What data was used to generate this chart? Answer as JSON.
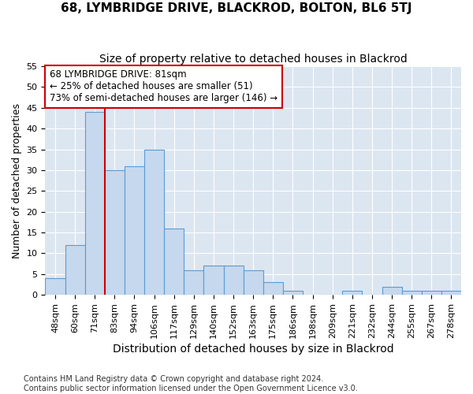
{
  "title": "68, LYMBRIDGE DRIVE, BLACKROD, BOLTON, BL6 5TJ",
  "subtitle": "Size of property relative to detached houses in Blackrod",
  "xlabel": "Distribution of detached houses by size in Blackrod",
  "ylabel": "Number of detached properties",
  "categories": [
    "48sqm",
    "60sqm",
    "71sqm",
    "83sqm",
    "94sqm",
    "106sqm",
    "117sqm",
    "129sqm",
    "140sqm",
    "152sqm",
    "163sqm",
    "175sqm",
    "186sqm",
    "198sqm",
    "209sqm",
    "221sqm",
    "232sqm",
    "244sqm",
    "255sqm",
    "267sqm",
    "278sqm"
  ],
  "values": [
    4,
    12,
    44,
    30,
    31,
    35,
    16,
    6,
    7,
    7,
    6,
    3,
    1,
    0,
    0,
    1,
    0,
    2,
    1,
    1,
    1
  ],
  "bar_color": "#c5d8ed",
  "bar_edge_color": "#5b9bd5",
  "line_x_index": 2.5,
  "annotation_line1": "68 LYMBRIDGE DRIVE: 81sqm",
  "annotation_line2": "← 25% of detached houses are smaller (51)",
  "annotation_line3": "73% of semi-detached houses are larger (146) →",
  "vline_color": "#cc0000",
  "box_edge_color": "#cc0000",
  "plot_bg_color": "#dce6f1",
  "fig_bg_color": "#ffffff",
  "grid_color": "#ffffff",
  "footer_line1": "Contains HM Land Registry data © Crown copyright and database right 2024.",
  "footer_line2": "Contains public sector information licensed under the Open Government Licence v3.0.",
  "ylim": [
    0,
    55
  ],
  "yticks": [
    0,
    5,
    10,
    15,
    20,
    25,
    30,
    35,
    40,
    45,
    50,
    55
  ],
  "title_fontsize": 11,
  "subtitle_fontsize": 10,
  "ylabel_fontsize": 9,
  "xlabel_fontsize": 10,
  "tick_fontsize": 8,
  "annot_fontsize": 8.5,
  "footer_fontsize": 7
}
